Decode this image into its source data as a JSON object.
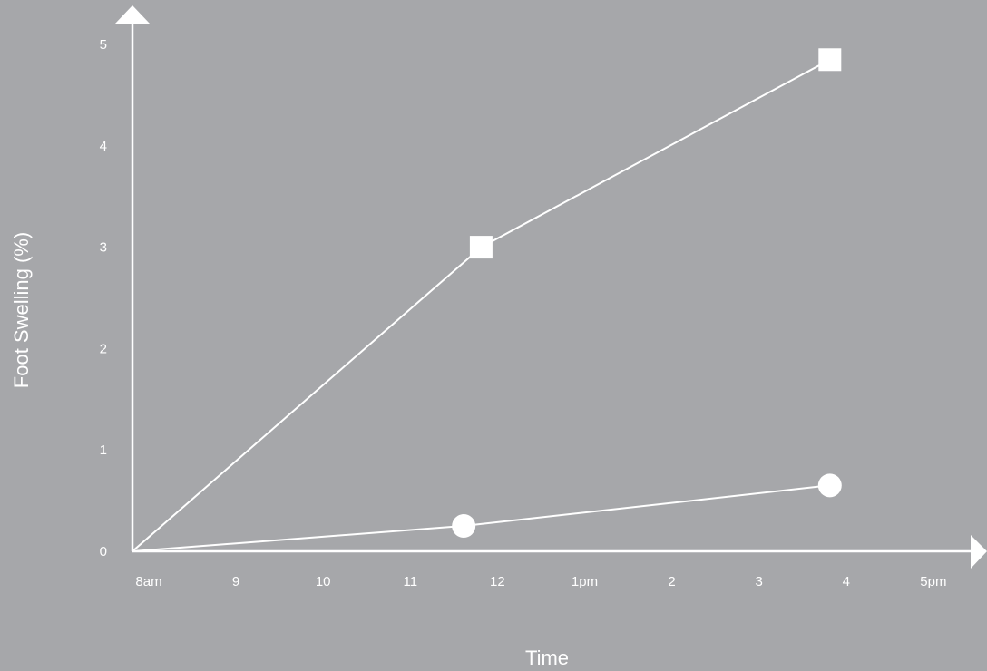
{
  "chart_data": {
    "type": "line",
    "title": "",
    "xlabel": "Time",
    "ylabel": "Foot Swelling (%)",
    "x_ticks": [
      "8am",
      "9",
      "10",
      "11",
      "12",
      "1pm",
      "2",
      "3",
      "4",
      "5pm"
    ],
    "y_ticks": [
      "0",
      "1",
      "2",
      "3",
      "4",
      "5"
    ],
    "xlim": [
      8,
      17
    ],
    "ylim": [
      0,
      5
    ],
    "grid": false,
    "series": [
      {
        "marker": "square",
        "x": [
          8,
          12,
          16
        ],
        "y": [
          0,
          3.0,
          4.85
        ]
      },
      {
        "marker": "circle",
        "x": [
          8,
          11.8,
          16
        ],
        "y": [
          0,
          0.25,
          0.65
        ]
      }
    ]
  },
  "colors": {
    "background": "#a6a7aa",
    "foreground": "#ffffff"
  }
}
